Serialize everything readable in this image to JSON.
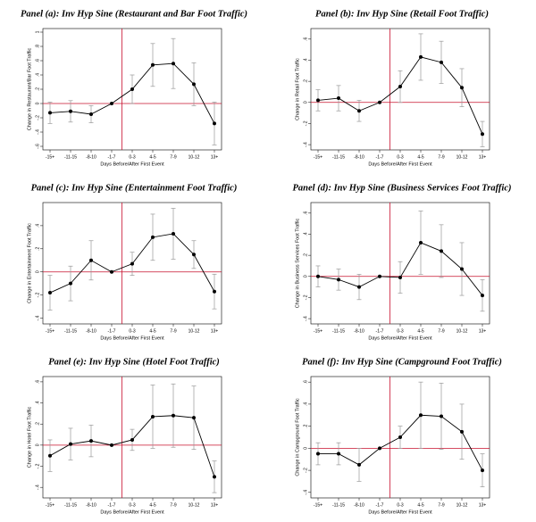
{
  "chart_data": [
    {
      "type": "line",
      "title": "Panel (a): Inv Hyp Sine (Restaurant and Bar Foot Traffic)",
      "x_label": "Days Before/After First Event",
      "y_label": "Change in Restaurant/Bar Foot Traffic",
      "categories": [
        "-15+",
        "-11-15",
        "-8-10",
        "-1-7",
        "0-3",
        "4-5",
        "7-9",
        "10-12",
        "13+"
      ],
      "values": [
        -0.13,
        -0.11,
        -0.15,
        0,
        0.2,
        0.54,
        0.56,
        0.27,
        -0.28
      ],
      "errors": [
        0.15,
        0.15,
        0.12,
        0,
        0.2,
        0.3,
        0.35,
        0.3,
        0.3
      ],
      "color": "#000000",
      "ylim": [
        -0.65,
        1.05
      ],
      "yticks": [
        {
          "value": -0.6,
          "label": "-.6"
        },
        {
          "value": -0.4,
          "label": "-.4"
        },
        {
          "value": -0.2,
          "label": "-.2"
        },
        0,
        {
          "value": 0.2,
          "label": ".2"
        },
        {
          "value": 0.4,
          "label": ".4"
        },
        {
          "value": 0.6,
          "label": ".6"
        },
        {
          "value": 0.8,
          "label": ".8"
        },
        1
      ]
    },
    {
      "type": "line",
      "title": "Panel (b): Inv Hyp Sine (Retail Foot Traffic)",
      "x_label": "Days Before/After First Event",
      "y_label": "Change in Retail Foot Traffic",
      "categories": [
        "-15+",
        "-11-15",
        "-8-10",
        "-1-7",
        "0-3",
        "4-5",
        "7-9",
        "10-12",
        "13+"
      ],
      "values": [
        0.02,
        0.04,
        -0.08,
        0,
        0.15,
        0.43,
        0.38,
        0.14,
        -0.3
      ],
      "errors": [
        0.1,
        0.12,
        0.1,
        0,
        0.15,
        0.22,
        0.2,
        0.18,
        0.12
      ],
      "color": "#000000",
      "ylim": [
        -0.45,
        0.7
      ],
      "yticks": [
        {
          "value": -0.4,
          "label": "-.4"
        },
        {
          "value": -0.2,
          "label": "-.2"
        },
        0,
        {
          "value": 0.2,
          "label": ".2"
        },
        {
          "value": 0.4,
          "label": ".4"
        },
        {
          "value": 0.6,
          "label": ".6"
        }
      ]
    },
    {
      "type": "line",
      "title": "Panel (c): Inv Hyp Sine (Entertainment Foot Traffic)",
      "x_label": "Days Before/After First Event",
      "y_label": "Change in Entertainment Foot Traffic",
      "categories": [
        "-15+",
        "-11-15",
        "-8-10",
        "-1-7",
        "0-3",
        "4-5",
        "7-9",
        "10-12",
        "13+"
      ],
      "values": [
        -0.18,
        -0.1,
        0.1,
        0,
        0.07,
        0.3,
        0.33,
        0.15,
        -0.17
      ],
      "errors": [
        0.15,
        0.15,
        0.17,
        0,
        0.1,
        0.2,
        0.22,
        0.12,
        0.15
      ],
      "color": "#000000",
      "ylim": [
        -0.45,
        0.6
      ],
      "yticks": [
        {
          "value": -0.4,
          "label": "-.4"
        },
        {
          "value": -0.2,
          "label": "-.2"
        },
        0,
        {
          "value": 0.2,
          "label": ".2"
        },
        {
          "value": 0.4,
          "label": ".4"
        }
      ]
    },
    {
      "type": "line",
      "title": "Panel (d): Inv Hyp Sine (Business Services Foot Traffic)",
      "x_label": "Days Before/After First Event",
      "y_label": "Change in Business Services Foot Traffic",
      "categories": [
        "-15+",
        "-11-15",
        "-8-10",
        "-1-7",
        "0-3",
        "4-5",
        "7-9",
        "10-12",
        "13+"
      ],
      "values": [
        0,
        -0.03,
        -0.1,
        0,
        -0.01,
        0.32,
        0.24,
        0.07,
        -0.18
      ],
      "errors": [
        0.1,
        0.1,
        0.12,
        0,
        0.15,
        0.3,
        0.25,
        0.25,
        0.15
      ],
      "color": "#000000",
      "ylim": [
        -0.45,
        0.7
      ],
      "yticks": [
        {
          "value": -0.4,
          "label": "-.4"
        },
        {
          "value": -0.2,
          "label": "-.2"
        },
        0,
        {
          "value": 0.2,
          "label": ".2"
        },
        {
          "value": 0.4,
          "label": ".4"
        },
        {
          "value": 0.6,
          "label": ".6"
        }
      ]
    },
    {
      "type": "line",
      "title": "Panel (e): Inv Hyp Sine (Hotel Foot Traffic)",
      "x_label": "Days Before/After First Event",
      "y_label": "Change in Hotel Foot Traffic",
      "categories": [
        "-15+",
        "-11-15",
        "-8-10",
        "-1-7",
        "0-3",
        "4-5",
        "7-9",
        "10-12",
        "13+"
      ],
      "values": [
        -0.1,
        0.01,
        0.04,
        0,
        0.05,
        0.27,
        0.28,
        0.26,
        -0.3
      ],
      "errors": [
        0.15,
        0.15,
        0.15,
        0,
        0.1,
        0.3,
        0.3,
        0.3,
        0.15
      ],
      "color": "#000000",
      "ylim": [
        -0.5,
        0.65
      ],
      "yticks": [
        {
          "value": -0.4,
          "label": "-.4"
        },
        {
          "value": -0.2,
          "label": "-.2"
        },
        0,
        {
          "value": 0.2,
          "label": ".2"
        },
        {
          "value": 0.4,
          "label": ".4"
        },
        {
          "value": 0.6,
          "label": ".6"
        }
      ]
    },
    {
      "type": "line",
      "title": "Panel (f): Inv Hyp Sine (Campground Foot Traffic)",
      "x_label": "Days Before/After First Event",
      "y_label": "Change in Campground Foot Traffic",
      "categories": [
        "-15+",
        "-11-15",
        "-8-10",
        "-1-7",
        "0-3",
        "4-5",
        "7-9",
        "10-12",
        "13+"
      ],
      "values": [
        -0.05,
        -0.05,
        -0.15,
        0,
        0.1,
        0.3,
        0.29,
        0.15,
        -0.2
      ],
      "errors": [
        0.1,
        0.1,
        0.15,
        0,
        0.1,
        0.3,
        0.3,
        0.25,
        0.15
      ],
      "color": "#000000",
      "ylim": [
        -0.45,
        0.65
      ],
      "yticks": [
        {
          "value": -0.4,
          "label": "-.4"
        },
        {
          "value": -0.2,
          "label": "-.2"
        },
        0,
        {
          "value": 0.2,
          "label": ".2"
        },
        {
          "value": 0.4,
          "label": ".4"
        },
        {
          "value": 0.6,
          "label": ".6"
        }
      ]
    }
  ]
}
